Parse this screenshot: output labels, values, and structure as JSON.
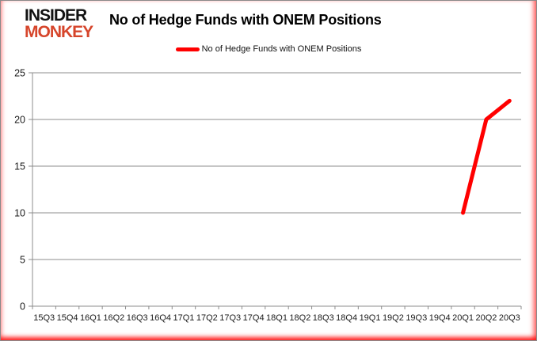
{
  "header": {
    "logo_line1": "INSIDER",
    "logo_line2": "MONKEY",
    "title": "No of Hedge Funds with ONEM Positions"
  },
  "legend": {
    "label": "No of Hedge Funds with ONEM Positions"
  },
  "colors": {
    "line": "#ff0000",
    "grid": "#8c8c8c",
    "axis": "#8c8c8c",
    "tick_label": "#1a1a1a",
    "logo_black": "#131313",
    "logo_accent": "#d6452b",
    "border_glow": "#ff0000"
  },
  "chart_data": {
    "type": "line",
    "title": "No of Hedge Funds with ONEM Positions",
    "xlabel": "",
    "ylabel": "",
    "categories": [
      "15Q3",
      "15Q4",
      "16Q1",
      "16Q2",
      "16Q3",
      "16Q4",
      "17Q1",
      "17Q2",
      "17Q3",
      "17Q4",
      "18Q1",
      "18Q2",
      "18Q3",
      "18Q4",
      "19Q1",
      "19Q2",
      "19Q3",
      "19Q4",
      "20Q1",
      "20Q2",
      "20Q3"
    ],
    "series": [
      {
        "name": "No of Hedge Funds with ONEM Positions",
        "color": "#ff0000",
        "values": [
          null,
          null,
          null,
          null,
          null,
          null,
          null,
          null,
          null,
          null,
          null,
          null,
          null,
          null,
          null,
          null,
          null,
          null,
          10,
          20,
          22
        ]
      }
    ],
    "ylim": [
      0,
      25
    ],
    "yticks": [
      0,
      5,
      10,
      15,
      20,
      25
    ],
    "grid": true,
    "legend_position": "top"
  }
}
